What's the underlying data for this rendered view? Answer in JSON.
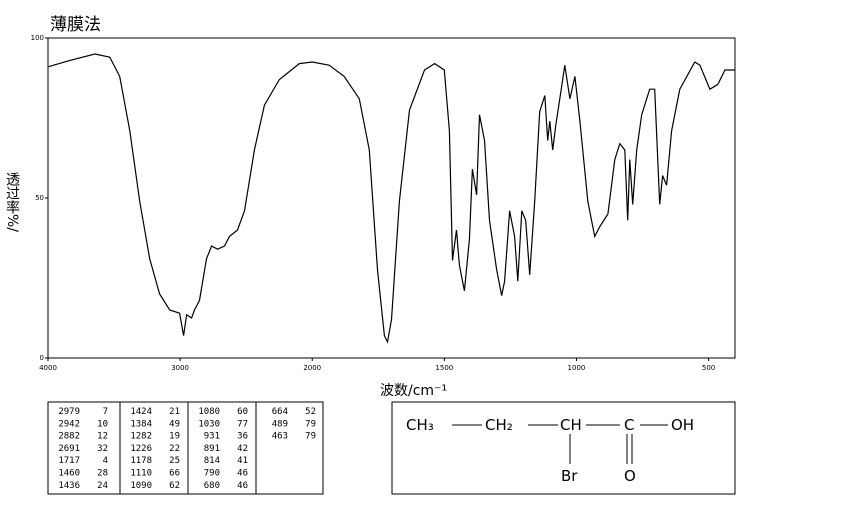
{
  "chart_data": {
    "type": "line",
    "title": "薄膜法",
    "x_label": "波数/cm⁻¹",
    "y_label": "透过率%/",
    "x": [
      4000,
      3834,
      3645,
      3532,
      3457,
      3381,
      3306,
      3230,
      3155,
      3079,
      3004,
      2974,
      2951,
      2913,
      2891,
      2853,
      2800,
      2762,
      2717,
      2664,
      2626,
      2566,
      2513,
      2438,
      2362,
      2249,
      2098,
      2000,
      1936,
      1879,
      1822,
      1784,
      1753,
      1727,
      1715,
      1700,
      1670,
      1632,
      1575,
      1537,
      1500,
      1481,
      1469,
      1454,
      1443,
      1424,
      1405,
      1394,
      1378,
      1367,
      1348,
      1329,
      1302,
      1283,
      1272,
      1253,
      1234,
      1222,
      1207,
      1192,
      1177,
      1158,
      1139,
      1120,
      1109,
      1101,
      1090,
      1078,
      1063,
      1044,
      1025,
      1006,
      987,
      957,
      931,
      912,
      881,
      855,
      836,
      817,
      806,
      798,
      787,
      772,
      753,
      723,
      704,
      685,
      674,
      659,
      640,
      609,
      552,
      533,
      495,
      465,
      438,
      400
    ],
    "values": [
      91,
      93,
      95,
      94,
      88,
      71,
      49,
      31,
      20,
      15,
      14,
      7,
      13.5,
      12.5,
      15,
      18,
      31,
      35,
      34,
      35,
      38,
      40,
      46,
      65,
      79,
      87,
      92,
      92.5,
      91.5,
      88,
      81,
      65,
      27.5,
      7,
      5,
      12,
      49,
      77.5,
      90,
      92,
      90,
      71,
      30.5,
      40,
      29,
      21,
      37,
      59,
      51,
      76,
      68,
      43,
      27.5,
      19.5,
      24,
      46,
      38,
      24,
      46,
      43,
      26,
      49,
      77,
      82,
      68,
      74,
      65,
      73,
      81,
      91.5,
      81,
      88,
      74,
      49,
      38,
      41,
      45,
      62,
      67,
      65,
      43,
      62,
      48,
      65,
      76,
      84,
      84,
      48,
      57,
      54,
      71,
      84,
      92.5,
      91.5,
      84,
      85.5,
      90,
      90
    ],
    "color": "#000000",
    "xlim": [
      4000,
      400
    ],
    "x_scale_break": 2000,
    "ylim": [
      0,
      100
    ],
    "xticks": [
      4000,
      3000,
      2000,
      1500,
      1000,
      500
    ],
    "yticks": [
      0,
      50,
      100
    ]
  },
  "peak_table": [
    [
      [
        "2979",
        "7"
      ],
      [
        "2942",
        "10"
      ],
      [
        "2882",
        "12"
      ],
      [
        "2691",
        "32"
      ],
      [
        "1717",
        "4"
      ],
      [
        "1460",
        "28"
      ],
      [
        "1436",
        "24"
      ]
    ],
    [
      [
        "1424",
        "21"
      ],
      [
        "1384",
        "49"
      ],
      [
        "1282",
        "19"
      ],
      [
        "1226",
        "22"
      ],
      [
        "1178",
        "25"
      ],
      [
        "1110",
        "66"
      ],
      [
        "1090",
        "62"
      ]
    ],
    [
      [
        "1080",
        "60"
      ],
      [
        "1030",
        "77"
      ],
      [
        "931",
        "36"
      ],
      [
        "891",
        "42"
      ],
      [
        "814",
        "41"
      ],
      [
        "790",
        "46"
      ],
      [
        "680",
        "46"
      ]
    ],
    [
      [
        "664",
        "52"
      ],
      [
        "489",
        "79"
      ],
      [
        "463",
        "79"
      ]
    ]
  ],
  "structure": {
    "ch3": "CH₃",
    "ch2": "CH₂",
    "ch": "CH",
    "c": "C",
    "oh": "OH",
    "br": "Br",
    "o": "O"
  }
}
